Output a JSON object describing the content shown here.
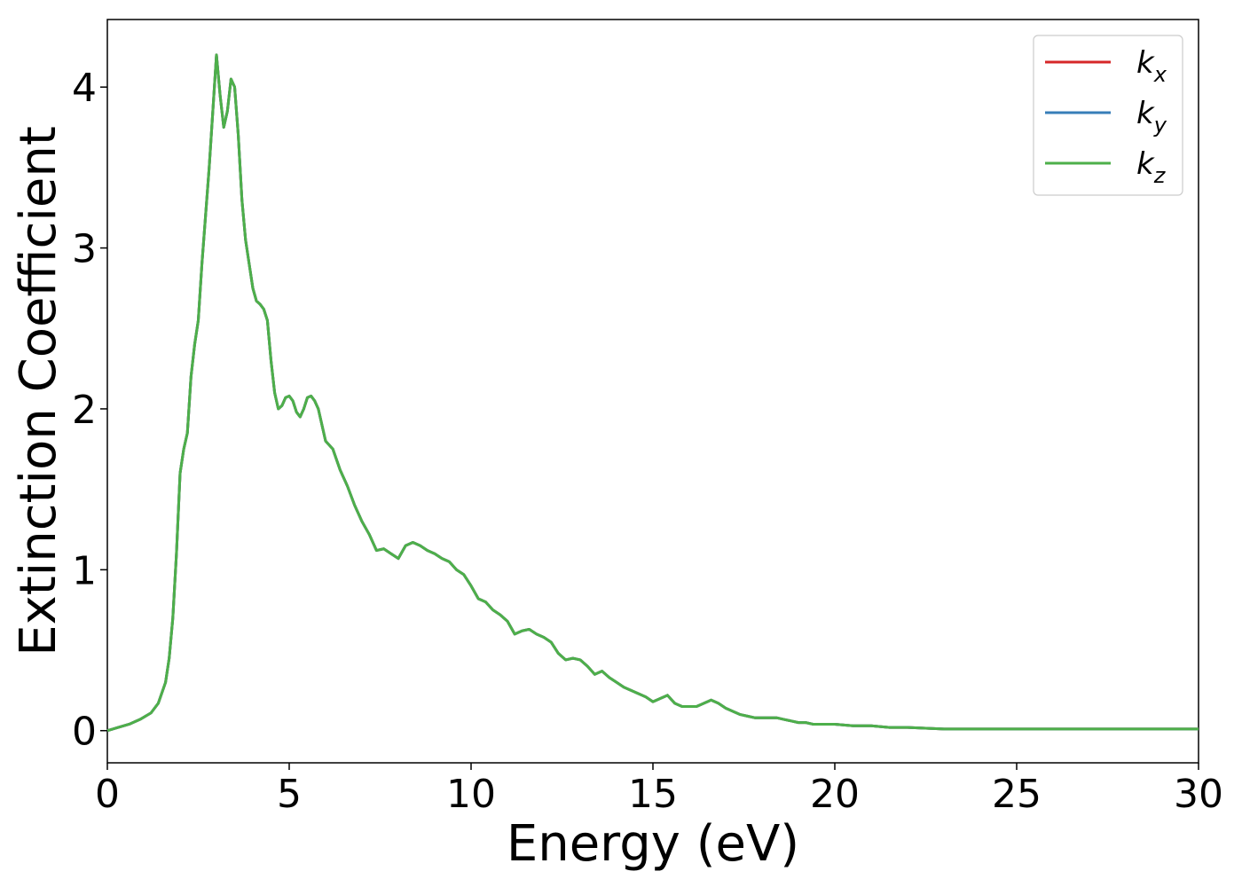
{
  "chart_data": {
    "type": "line",
    "xlabel": "Energy (eV)",
    "ylabel": "Extinction Coefficient",
    "xlim": [
      0,
      30
    ],
    "ylim": [
      -0.2,
      4.42
    ],
    "xticks": [
      0,
      5,
      10,
      15,
      20,
      25,
      30
    ],
    "yticks": [
      0,
      1,
      2,
      3,
      4
    ],
    "grid": false,
    "legend_position": "top-right",
    "series": [
      {
        "name": "k_x",
        "legend_base": "k",
        "legend_sub": "x",
        "color": "#d62728",
        "x": [
          0,
          0.3,
          0.6,
          0.9,
          1.2,
          1.4,
          1.6,
          1.7,
          1.8,
          1.9,
          2.0,
          2.1,
          2.2,
          2.3,
          2.4,
          2.5,
          2.6,
          2.7,
          2.8,
          2.9,
          3.0,
          3.1,
          3.2,
          3.3,
          3.4,
          3.5,
          3.6,
          3.7,
          3.8,
          3.9,
          4.0,
          4.1,
          4.2,
          4.3,
          4.4,
          4.5,
          4.6,
          4.7,
          4.8,
          4.9,
          5.0,
          5.1,
          5.2,
          5.3,
          5.4,
          5.5,
          5.6,
          5.7,
          5.8,
          5.9,
          6.0,
          6.2,
          6.4,
          6.6,
          6.8,
          7.0,
          7.2,
          7.4,
          7.6,
          7.8,
          8.0,
          8.2,
          8.4,
          8.6,
          8.8,
          9.0,
          9.2,
          9.4,
          9.6,
          9.8,
          10.0,
          10.2,
          10.4,
          10.6,
          10.8,
          11.0,
          11.2,
          11.4,
          11.6,
          11.8,
          12.0,
          12.2,
          12.4,
          12.6,
          12.8,
          13.0,
          13.2,
          13.4,
          13.6,
          13.8,
          14.0,
          14.2,
          14.4,
          14.6,
          14.8,
          15.0,
          15.2,
          15.4,
          15.6,
          15.8,
          16.0,
          16.2,
          16.4,
          16.6,
          16.8,
          17.0,
          17.2,
          17.4,
          17.6,
          17.8,
          18.0,
          18.2,
          18.4,
          18.6,
          18.8,
          19.0,
          19.2,
          19.4,
          19.6,
          19.8,
          20.0,
          20.5,
          21.0,
          21.5,
          22.0,
          23.0,
          24.0,
          25.0,
          26.0,
          27.0,
          28.0,
          29.0,
          30.0
        ],
        "y": [
          0.0,
          0.02,
          0.04,
          0.07,
          0.11,
          0.17,
          0.3,
          0.45,
          0.7,
          1.1,
          1.6,
          1.75,
          1.85,
          2.2,
          2.4,
          2.55,
          2.9,
          3.2,
          3.5,
          3.85,
          4.2,
          3.95,
          3.75,
          3.85,
          4.05,
          4.0,
          3.7,
          3.3,
          3.05,
          2.9,
          2.75,
          2.67,
          2.65,
          2.62,
          2.55,
          2.3,
          2.1,
          2.0,
          2.02,
          2.07,
          2.08,
          2.05,
          1.98,
          1.95,
          2.0,
          2.07,
          2.08,
          2.05,
          2.0,
          1.9,
          1.8,
          1.75,
          1.62,
          1.52,
          1.4,
          1.3,
          1.22,
          1.12,
          1.13,
          1.1,
          1.07,
          1.15,
          1.17,
          1.15,
          1.12,
          1.1,
          1.07,
          1.05,
          1.0,
          0.97,
          0.9,
          0.82,
          0.8,
          0.75,
          0.72,
          0.68,
          0.6,
          0.62,
          0.63,
          0.6,
          0.58,
          0.55,
          0.48,
          0.44,
          0.45,
          0.44,
          0.4,
          0.35,
          0.37,
          0.33,
          0.3,
          0.27,
          0.25,
          0.23,
          0.21,
          0.18,
          0.2,
          0.22,
          0.17,
          0.15,
          0.15,
          0.15,
          0.17,
          0.19,
          0.17,
          0.14,
          0.12,
          0.1,
          0.09,
          0.08,
          0.08,
          0.08,
          0.08,
          0.07,
          0.06,
          0.05,
          0.05,
          0.04,
          0.04,
          0.04,
          0.04,
          0.03,
          0.03,
          0.02,
          0.02,
          0.01,
          0.01,
          0.01,
          0.01,
          0.01,
          0.01,
          0.01,
          0.01
        ]
      },
      {
        "name": "k_y",
        "legend_base": "k",
        "legend_sub": "y",
        "color": "#377eb8",
        "same_as": "k_x"
      },
      {
        "name": "k_z",
        "legend_base": "k",
        "legend_sub": "z",
        "color": "#4daf4a",
        "same_as": "k_x"
      }
    ]
  }
}
